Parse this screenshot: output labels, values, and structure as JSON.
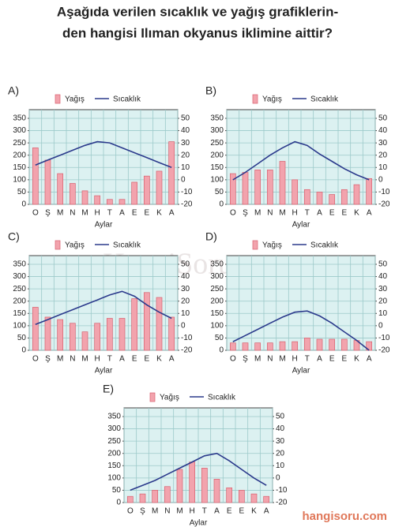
{
  "question": [
    "Aşağıda verilen sıcaklık ve yağış grafiklerin-",
    "den hangisi Ilıman okyanus iklimine aittir?"
  ],
  "watermarks": [
    "HangiSoru.com",
    "hangisoru.com"
  ],
  "chart_data": [
    {
      "type": "bar_line",
      "label": "A)",
      "xlabel": "Aylar",
      "categories": [
        "O",
        "Ş",
        "M",
        "N",
        "M",
        "H",
        "T",
        "A",
        "E",
        "E",
        "K",
        "A"
      ],
      "series": [
        {
          "name": "Yağış",
          "color": "#f2a3ad",
          "values": [
            230,
            180,
            125,
            85,
            55,
            35,
            20,
            20,
            90,
            115,
            135,
            255
          ]
        },
        {
          "name": "Sıcaklık",
          "color": "#2b3a8c",
          "axis": "y2",
          "values": [
            12,
            16,
            20,
            24,
            28,
            31,
            30,
            26,
            22,
            18,
            14,
            10
          ]
        }
      ],
      "ylim": [
        0,
        350
      ],
      "yticks": [
        0,
        50,
        100,
        150,
        200,
        250,
        300,
        350
      ],
      "y2lim": [
        -20,
        50
      ],
      "y2ticks": [
        -20,
        -10,
        0,
        10,
        20,
        30,
        40,
        50
      ],
      "grid": true
    },
    {
      "type": "bar_line",
      "label": "B)",
      "xlabel": "Aylar",
      "categories": [
        "O",
        "Ş",
        "M",
        "N",
        "M",
        "H",
        "T",
        "A",
        "E",
        "E",
        "K",
        "A"
      ],
      "series": [
        {
          "name": "Yağış",
          "color": "#f2a3ad",
          "values": [
            125,
            130,
            140,
            140,
            175,
            100,
            60,
            50,
            40,
            60,
            80,
            105
          ]
        },
        {
          "name": "Sıcaklık",
          "color": "#2b3a8c",
          "axis": "y2",
          "values": [
            0,
            6,
            13,
            20,
            26,
            31,
            28,
            21,
            15,
            9,
            4,
            0
          ]
        }
      ],
      "ylim": [
        0,
        350
      ],
      "yticks": [
        0,
        50,
        100,
        150,
        200,
        250,
        300,
        350
      ],
      "y2lim": [
        -20,
        50
      ],
      "y2ticks": [
        -20,
        -10,
        0,
        10,
        20,
        30,
        40,
        50
      ],
      "grid": true
    },
    {
      "type": "bar_line",
      "label": "C)",
      "xlabel": "Aylar",
      "categories": [
        "O",
        "Ş",
        "M",
        "N",
        "M",
        "H",
        "T",
        "A",
        "E",
        "E",
        "K",
        "A"
      ],
      "series": [
        {
          "name": "Yağış",
          "color": "#f2a3ad",
          "values": [
            175,
            135,
            125,
            110,
            75,
            110,
            130,
            130,
            210,
            235,
            215,
            135
          ]
        },
        {
          "name": "Sıcaklık",
          "color": "#2b3a8c",
          "axis": "y2",
          "values": [
            1,
            5,
            9,
            13,
            17,
            21,
            25,
            28,
            24,
            17,
            11,
            6
          ]
        }
      ],
      "ylim": [
        0,
        350
      ],
      "yticks": [
        0,
        50,
        100,
        150,
        200,
        250,
        300,
        350
      ],
      "y2lim": [
        -20,
        50
      ],
      "y2ticks": [
        -20,
        -10,
        0,
        10,
        20,
        30,
        40,
        50
      ],
      "grid": true
    },
    {
      "type": "bar_line",
      "label": "D)",
      "xlabel": "Aylar",
      "categories": [
        "O",
        "Ş",
        "M",
        "N",
        "M",
        "H",
        "T",
        "A",
        "E",
        "E",
        "K",
        "A"
      ],
      "series": [
        {
          "name": "Yağış",
          "color": "#f2a3ad",
          "values": [
            30,
            30,
            30,
            30,
            35,
            35,
            50,
            45,
            45,
            45,
            40,
            35
          ]
        },
        {
          "name": "Sıcaklık",
          "color": "#2b3a8c",
          "axis": "y2",
          "values": [
            -13,
            -8,
            -3,
            2,
            7,
            11,
            12,
            8,
            2,
            -5,
            -12,
            -20
          ]
        }
      ],
      "ylim": [
        0,
        350
      ],
      "yticks": [
        0,
        50,
        100,
        150,
        200,
        250,
        300,
        350
      ],
      "y2lim": [
        -20,
        50
      ],
      "y2ticks": [
        -20,
        -10,
        0,
        10,
        20,
        30,
        40,
        50
      ],
      "grid": true
    },
    {
      "type": "bar_line",
      "label": "E)",
      "xlabel": "Aylar",
      "categories": [
        "O",
        "Ş",
        "M",
        "N",
        "M",
        "H",
        "T",
        "A",
        "E",
        "E",
        "K",
        "A"
      ],
      "series": [
        {
          "name": "Yağış",
          "color": "#f2a3ad",
          "values": [
            25,
            35,
            50,
            65,
            135,
            165,
            140,
            95,
            60,
            50,
            35,
            25
          ]
        },
        {
          "name": "Sıcaklık",
          "color": "#2b3a8c",
          "axis": "y2",
          "values": [
            -10,
            -6,
            -2,
            3,
            8,
            13,
            18,
            20,
            14,
            7,
            0,
            -6
          ]
        }
      ],
      "ylim": [
        0,
        350
      ],
      "yticks": [
        0,
        50,
        100,
        150,
        200,
        250,
        300,
        350
      ],
      "y2lim": [
        -20,
        50
      ],
      "y2ticks": [
        -20,
        -10,
        0,
        10,
        20,
        30,
        40,
        50
      ],
      "grid": true
    }
  ]
}
